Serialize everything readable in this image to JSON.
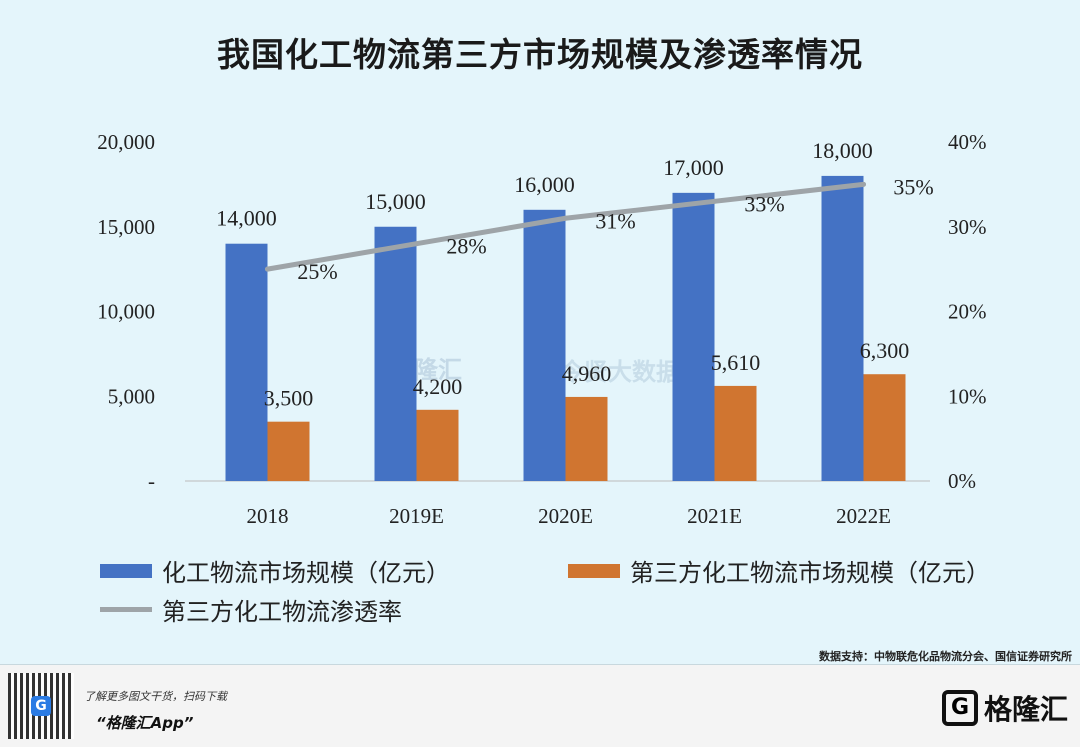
{
  "chart_data": {
    "type": "bar",
    "title": "我国化工物流第三方市场规模及渗透率情况",
    "categories": [
      "2018",
      "2019E",
      "2020E",
      "2021E",
      "2022E"
    ],
    "series": [
      {
        "name": "化工物流市场规模（亿元）",
        "type": "bar",
        "axis": "left",
        "color": "#4472c4",
        "values": [
          14000,
          15000,
          16000,
          17000,
          18000
        ],
        "labels": [
          "14,000",
          "15,000",
          "16,000",
          "17,000",
          "18,000"
        ]
      },
      {
        "name": "第三方化工物流市场规模（亿元）",
        "type": "bar",
        "axis": "left",
        "color": "#d07530",
        "values": [
          3500,
          4200,
          4960,
          5610,
          6300
        ],
        "labels": [
          "3,500",
          "4,200",
          "4,960",
          "5,610",
          "6,300"
        ]
      },
      {
        "name": "第三方化工物流渗透率",
        "type": "line",
        "axis": "right",
        "color": "#9ea4a8",
        "values": [
          25,
          28,
          31,
          33,
          35
        ],
        "labels": [
          "25%",
          "28%",
          "31%",
          "33%",
          "35%"
        ]
      }
    ],
    "ylim_left": [
      0,
      20000
    ],
    "ylim_right": [
      0,
      40
    ],
    "left_ticks": [
      "-",
      "5,000",
      "10,000",
      "15,000",
      "20,000"
    ],
    "right_ticks": [
      "0%",
      "10%",
      "20%",
      "30%",
      "40%"
    ],
    "grid": false,
    "legend_position": "bottom"
  },
  "source": "数据支持：中物联危化品物流分会、国信证券研究所",
  "footer": {
    "line1": "了解更多图文干货，扫码下载",
    "line2": "“格隆汇App”",
    "qr_badge": "G",
    "brand_mark": "G",
    "brand_name": "格隆汇"
  },
  "watermark": {
    "left": "格隆汇",
    "right": "今贤大数据"
  }
}
